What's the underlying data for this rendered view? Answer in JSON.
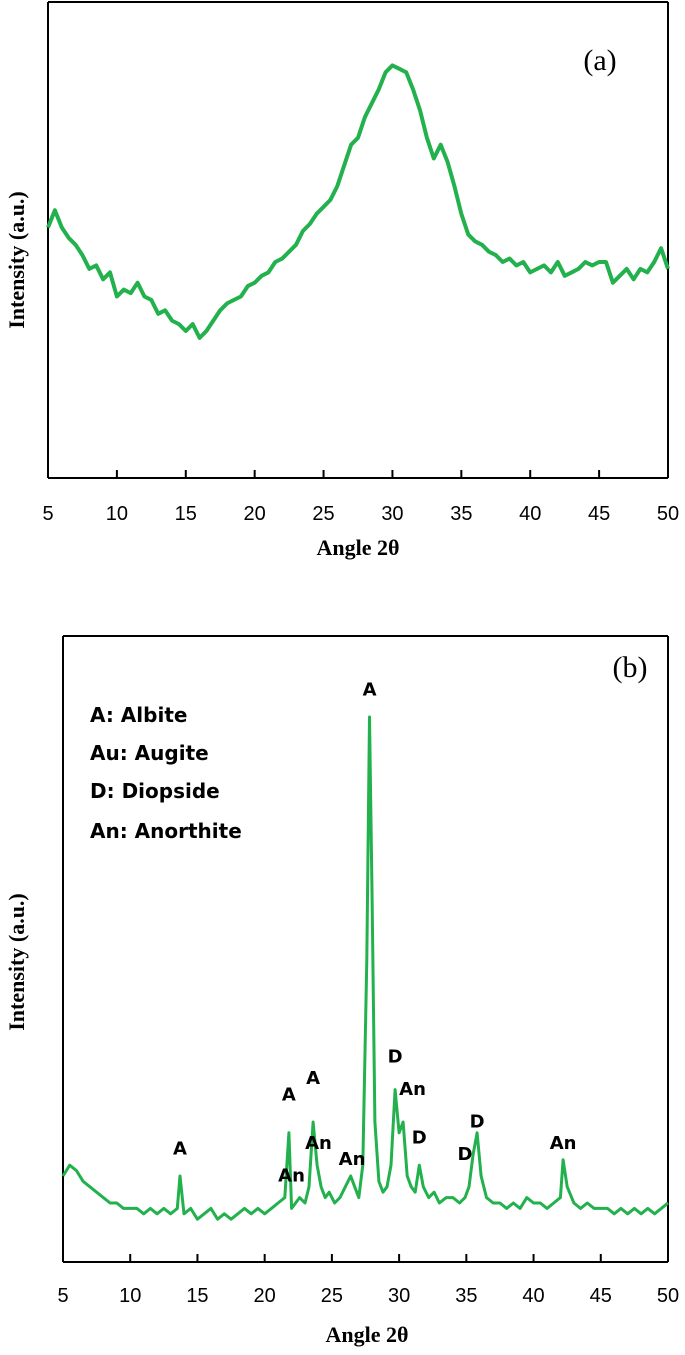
{
  "chart_data": [
    {
      "type": "line",
      "panel_label": "(a)",
      "xlabel": "Angle 2θ",
      "ylabel": "Intensity (a.u.)",
      "xlim": [
        5,
        50
      ],
      "ylim": [
        0,
        100
      ],
      "xticks": [
        5,
        10,
        15,
        20,
        25,
        30,
        35,
        40,
        45,
        50
      ],
      "yticks": [],
      "color": "#22b14c",
      "series": [
        {
          "x": [
            5,
            5.5,
            6,
            6.5,
            7,
            7.5,
            8,
            8.5,
            9,
            9.5,
            10,
            10.5,
            11,
            11.5,
            12,
            12.5,
            13,
            13.5,
            14,
            14.5,
            15,
            15.5,
            16,
            16.5,
            17,
            17.5,
            18,
            18.5,
            19,
            19.5,
            20,
            20.5,
            21,
            21.5,
            22,
            22.5,
            23,
            23.5,
            24,
            24.5,
            25,
            25.5,
            26,
            26.5,
            27,
            27.5,
            28,
            28.5,
            29,
            29.5,
            30,
            30.5,
            31,
            31.5,
            32,
            32.5,
            33,
            33.5,
            34,
            34.5,
            35,
            35.5,
            36,
            36.5,
            37,
            37.5,
            38,
            38.5,
            39,
            39.5,
            40,
            40.5,
            41,
            41.5,
            42,
            42.5,
            43,
            43.5,
            44,
            44.5,
            45,
            45.5,
            46,
            46.5,
            47,
            47.5,
            48,
            48.5,
            49,
            49.5,
            50
          ],
          "values": [
            50,
            55,
            50,
            47,
            45,
            42,
            38,
            39,
            35,
            37,
            30,
            32,
            31,
            34,
            30,
            29,
            25,
            26,
            23,
            22,
            20,
            22,
            18,
            20,
            23,
            26,
            28,
            29,
            30,
            33,
            34,
            36,
            37,
            40,
            41,
            43,
            45,
            49,
            51,
            54,
            56,
            58,
            62,
            68,
            74,
            76,
            82,
            86,
            90,
            95,
            97,
            96,
            95,
            90,
            84,
            76,
            70,
            74,
            69,
            62,
            54,
            48,
            46,
            45,
            43,
            42,
            40,
            41,
            39,
            40,
            37,
            38,
            39,
            37,
            40,
            36,
            37,
            38,
            40,
            39,
            40,
            40,
            34,
            36,
            38,
            35,
            38,
            37,
            40,
            44,
            38
          ]
        }
      ]
    },
    {
      "type": "line",
      "panel_label": "(b)",
      "xlabel": "Angle 2θ",
      "ylabel": "Intensity (a.u.)",
      "xlim": [
        5,
        50
      ],
      "ylim": [
        0,
        100
      ],
      "xticks": [
        5,
        10,
        15,
        20,
        25,
        30,
        35,
        40,
        45,
        50
      ],
      "yticks": [],
      "color": "#22b14c",
      "legend_lines": [
        "A: Albite",
        "Au: Augite",
        "D: Diopside",
        "An: Anorthite"
      ],
      "series": [
        {
          "x": [
            5,
            5.5,
            6,
            6.5,
            7,
            7.5,
            8,
            8.5,
            9,
            9.5,
            10,
            10.5,
            11,
            11.5,
            12,
            12.5,
            13,
            13.5,
            13.7,
            14,
            14.5,
            15,
            15.5,
            16,
            16.5,
            17,
            17.5,
            18,
            18.5,
            19,
            19.5,
            20,
            20.5,
            21,
            21.5,
            21.8,
            22,
            22.3,
            22.6,
            23,
            23.3,
            23.6,
            23.9,
            24.2,
            24.5,
            24.8,
            25.2,
            25.6,
            26,
            26.4,
            26.7,
            27,
            27.3,
            27.6,
            27.8,
            28,
            28.2,
            28.5,
            28.8,
            29.1,
            29.4,
            29.7,
            30,
            30.3,
            30.6,
            30.9,
            31.2,
            31.5,
            31.8,
            32.2,
            32.6,
            33,
            33.5,
            34,
            34.5,
            34.9,
            35.2,
            35.5,
            35.8,
            36.1,
            36.5,
            37,
            37.5,
            38,
            38.5,
            39,
            39.5,
            40,
            40.5,
            41,
            41.5,
            42,
            42.2,
            42.5,
            43,
            43.5,
            44,
            44.5,
            45,
            45.5,
            46,
            46.5,
            47,
            47.5,
            48,
            48.5,
            49,
            49.5,
            50
          ],
          "values": [
            10,
            12,
            11,
            9,
            8,
            7,
            6,
            5,
            5,
            4,
            4,
            4,
            3,
            4,
            3,
            4,
            3,
            4,
            10,
            3,
            4,
            2,
            3,
            4,
            2,
            3,
            2,
            3,
            4,
            3,
            4,
            3,
            4,
            5,
            6,
            18,
            4,
            5,
            6,
            5,
            8,
            20,
            12,
            8,
            6,
            7,
            5,
            6,
            8,
            10,
            8,
            6,
            12,
            50,
            95,
            60,
            20,
            9,
            7,
            8,
            12,
            26,
            18,
            20,
            10,
            8,
            7,
            12,
            8,
            6,
            7,
            5,
            6,
            6,
            5,
            6,
            8,
            14,
            18,
            10,
            6,
            5,
            5,
            4,
            5,
            4,
            6,
            5,
            5,
            4,
            5,
            6,
            13,
            8,
            5,
            4,
            5,
            4,
            4,
            4,
            3,
            4,
            3,
            4,
            3,
            4,
            3,
            4,
            5
          ]
        }
      ],
      "peak_labels": [
        {
          "text": "A",
          "x": 13.7,
          "y": 14
        },
        {
          "text": "An",
          "x": 22.0,
          "y": 9
        },
        {
          "text": "A",
          "x": 21.8,
          "y": 24
        },
        {
          "text": "A",
          "x": 23.6,
          "y": 27
        },
        {
          "text": "An",
          "x": 24.0,
          "y": 15
        },
        {
          "text": "An",
          "x": 26.5,
          "y": 12
        },
        {
          "text": "A",
          "x": 27.8,
          "y": 99
        },
        {
          "text": "D",
          "x": 29.7,
          "y": 31
        },
        {
          "text": "An",
          "x": 31.0,
          "y": 25
        },
        {
          "text": "D",
          "x": 31.5,
          "y": 16
        },
        {
          "text": "D",
          "x": 34.9,
          "y": 13
        },
        {
          "text": "D",
          "x": 35.8,
          "y": 19
        },
        {
          "text": "An",
          "x": 42.2,
          "y": 15
        }
      ]
    }
  ]
}
